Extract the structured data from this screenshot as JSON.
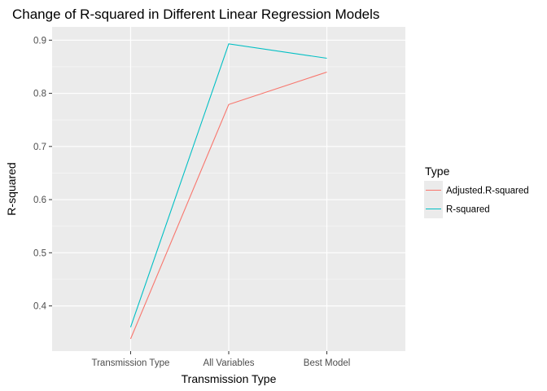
{
  "chart_data": {
    "type": "line",
    "title": "Change of R-squared in Different Linear Regression Models",
    "xlabel": "Transmission Type",
    "ylabel": "R-squared",
    "categories": [
      "Transmission Type",
      "All Variables",
      "Best Model"
    ],
    "ylim": [
      0.315,
      0.925
    ],
    "yticks": [
      0.4,
      0.5,
      0.6,
      0.7,
      0.8,
      0.9
    ],
    "ytick_labels": [
      "0.4",
      "0.5",
      "0.6",
      "0.7",
      "0.8",
      "0.9"
    ],
    "grid": true,
    "legend": {
      "title": "Type",
      "position": "right"
    },
    "series": [
      {
        "name": "Adjusted.R-squared",
        "color": "#F8766D",
        "values": [
          0.338,
          0.779,
          0.84
        ]
      },
      {
        "name": "R-squared",
        "color": "#00BFC4",
        "values": [
          0.36,
          0.893,
          0.866
        ]
      }
    ]
  }
}
